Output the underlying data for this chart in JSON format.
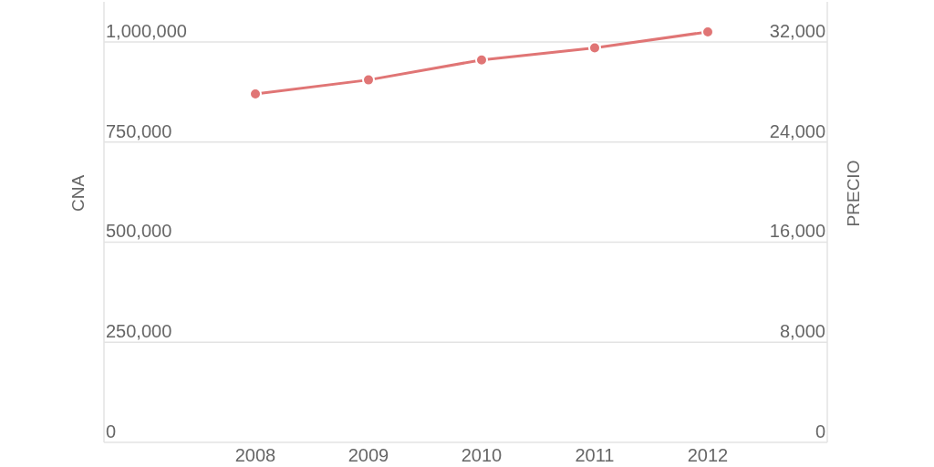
{
  "chart_data": {
    "type": "line",
    "categories": [
      "2008",
      "2009",
      "2010",
      "2011",
      "2012"
    ],
    "series": [
      {
        "color": "#e07575",
        "values": [
          870000,
          905000,
          955000,
          985000,
          1025000
        ]
      }
    ],
    "ylabel": "CNA",
    "y2label": "PRECIO",
    "ylim": [
      0,
      1100000
    ],
    "yticks": [
      {
        "value": 0,
        "label": "0"
      },
      {
        "value": 250000,
        "label": "250,000"
      },
      {
        "value": 500000,
        "label": "500,000"
      },
      {
        "value": 750000,
        "label": "750,000"
      },
      {
        "value": 1000000,
        "label": "1,000,000"
      }
    ],
    "y2lim": [
      0,
      35200
    ],
    "y2ticks": [
      {
        "value": 0,
        "label": "0"
      },
      {
        "value": 8000,
        "label": "8,000"
      },
      {
        "value": 16000,
        "label": "16,000"
      },
      {
        "value": 24000,
        "label": "24,000"
      },
      {
        "value": 32000,
        "label": "32,000"
      }
    ],
    "grid": "y",
    "marker": "circle",
    "line_style": "solid"
  }
}
